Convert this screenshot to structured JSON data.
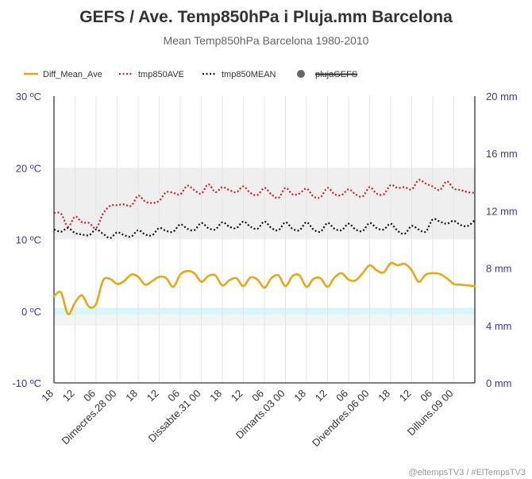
{
  "chart_data": {
    "type": "line",
    "title": "GEFS / Ave. Temp850hPa i Pluja.mm Barcelona",
    "subtitle": "Mean Temp850hPa Barcelona 1980-2010",
    "credit": "@eltempsTV3 / #ElTempsTV3",
    "legend": {
      "placement": "top-left",
      "entries": [
        {
          "name": "Diff_Mean_Ave",
          "color": "#e6a817",
          "style": "solid"
        },
        {
          "name": "tmp850AVE",
          "color": "#cc2222",
          "style": "dotted"
        },
        {
          "name": "tmp850MEAN",
          "color": "#111111",
          "style": "dotted"
        },
        {
          "name": "plujaGEFS",
          "color": "#666666",
          "style": "marker",
          "hidden": true
        }
      ]
    },
    "y_left": {
      "ylim": [
        -10,
        30
      ],
      "ticks": [
        {
          "value": 30,
          "label": "30 ºC"
        },
        {
          "value": 20,
          "label": "20 ºC"
        },
        {
          "value": 10,
          "label": "10 ºC"
        },
        {
          "value": 0,
          "label": "0 ºC"
        },
        {
          "value": -10,
          "label": "-10 ºC"
        }
      ]
    },
    "y_right": {
      "ylim": [
        0,
        20
      ],
      "ticks": [
        {
          "value": 20,
          "label": "20 mm"
        },
        {
          "value": 16,
          "label": "16 mm"
        },
        {
          "value": 12,
          "label": "12 mm"
        },
        {
          "value": 8,
          "label": "8 mm"
        },
        {
          "value": 4,
          "label": "4 mm"
        },
        {
          "value": 0,
          "label": "0 mm"
        }
      ]
    },
    "grid": true,
    "bands": [
      {
        "from": 10,
        "to": 20,
        "color": "#efefef"
      },
      {
        "from": -2,
        "to": 0,
        "color": "#f4f4f4"
      },
      {
        "from": -0.5,
        "to": 0.5,
        "color": "#d7f7f9"
      }
    ],
    "x_hours": [
      0,
      360
    ],
    "x_ticks": [
      {
        "hour": 0,
        "label": "18"
      },
      {
        "hour": 18,
        "label": "12"
      },
      {
        "hour": 36,
        "label": "06"
      },
      {
        "hour": 54,
        "label": "Dimecres.28 00"
      },
      {
        "hour": 72,
        "label": "18"
      },
      {
        "hour": 90,
        "label": "12"
      },
      {
        "hour": 108,
        "label": "06"
      },
      {
        "hour": 126,
        "label": "Dissabte.31 00"
      },
      {
        "hour": 144,
        "label": "18"
      },
      {
        "hour": 162,
        "label": "12"
      },
      {
        "hour": 180,
        "label": "06"
      },
      {
        "hour": 198,
        "label": "Dimarts.03 00"
      },
      {
        "hour": 216,
        "label": "18"
      },
      {
        "hour": 234,
        "label": "12"
      },
      {
        "hour": 252,
        "label": "06"
      },
      {
        "hour": 270,
        "label": "Divendres.06 00"
      },
      {
        "hour": 288,
        "label": "18"
      },
      {
        "hour": 306,
        "label": "12"
      },
      {
        "hour": 324,
        "label": "06"
      },
      {
        "hour": 342,
        "label": "Dilluns.09 00"
      }
    ],
    "series": [
      {
        "name": "tmp850AVE",
        "hours": [
          0,
          6,
          12,
          18,
          24,
          30,
          36,
          42,
          48,
          54,
          60,
          66,
          72,
          78,
          84,
          90,
          96,
          102,
          108,
          114,
          120,
          126,
          132,
          138,
          144,
          150,
          156,
          162,
          168,
          174,
          180,
          186,
          192,
          198,
          204,
          210,
          216,
          222,
          228,
          234,
          240,
          246,
          252,
          258,
          264,
          270,
          276,
          282,
          288,
          294,
          300,
          306,
          312,
          318,
          324,
          330,
          336,
          342,
          348,
          354,
          360
        ],
        "values": [
          13.7,
          13.6,
          11.8,
          13.2,
          12.4,
          12.3,
          11.6,
          13.6,
          14.7,
          14.8,
          14.9,
          14.7,
          16.1,
          15.3,
          15.1,
          15.4,
          16.6,
          16.5,
          16.3,
          17.5,
          16.9,
          16.4,
          17.7,
          16.6,
          17.3,
          16.9,
          16.6,
          17.4,
          16.5,
          16.2,
          17.2,
          16.3,
          15.8,
          17.2,
          16.3,
          16.4,
          17.1,
          16.0,
          15.9,
          17.2,
          16.3,
          16.2,
          17.0,
          16.3,
          16.0,
          17.3,
          16.4,
          16.3,
          17.6,
          17.2,
          17.3,
          17.0,
          18.3,
          17.8,
          17.4,
          16.9,
          18.1,
          17.1,
          16.9,
          16.6,
          16.5
        ]
      },
      {
        "name": "tmp850MEAN",
        "hours": [
          0,
          6,
          12,
          18,
          24,
          30,
          36,
          42,
          48,
          54,
          60,
          66,
          72,
          78,
          84,
          90,
          96,
          102,
          108,
          114,
          120,
          126,
          132,
          138,
          144,
          150,
          156,
          162,
          168,
          174,
          180,
          186,
          192,
          198,
          204,
          210,
          216,
          222,
          228,
          234,
          240,
          246,
          252,
          258,
          264,
          270,
          276,
          282,
          288,
          294,
          300,
          306,
          312,
          318,
          324,
          330,
          336,
          342,
          348,
          354,
          360
        ],
        "values": [
          11.4,
          11.1,
          11.6,
          10.9,
          10.7,
          10.6,
          11.4,
          10.8,
          10.2,
          11.0,
          10.6,
          10.4,
          11.3,
          10.7,
          10.6,
          11.6,
          11.2,
          11.1,
          12.1,
          11.5,
          11.3,
          12.3,
          11.6,
          11.4,
          12.4,
          11.8,
          11.6,
          12.5,
          11.8,
          11.5,
          12.5,
          11.6,
          11.3,
          12.4,
          11.5,
          11.3,
          12.4,
          11.4,
          11.1,
          12.3,
          11.5,
          11.3,
          12.2,
          11.4,
          11.2,
          12.3,
          11.6,
          11.4,
          12.2,
          11.2,
          10.8,
          11.9,
          11.4,
          11.1,
          12.8,
          12.5,
          12.2,
          12.6,
          12.0,
          11.9,
          12.7
        ]
      },
      {
        "name": "Diff_Mean_Ave",
        "hours": [
          0,
          6,
          12,
          18,
          24,
          30,
          36,
          42,
          48,
          54,
          60,
          66,
          72,
          78,
          84,
          90,
          96,
          102,
          108,
          114,
          120,
          126,
          132,
          138,
          144,
          150,
          156,
          162,
          168,
          174,
          180,
          186,
          192,
          198,
          204,
          210,
          216,
          222,
          228,
          234,
          240,
          246,
          252,
          258,
          264,
          270,
          276,
          282,
          288,
          294,
          300,
          306,
          312,
          318,
          324,
          330,
          336,
          342,
          348,
          354,
          360
        ],
        "values": [
          2.1,
          2.6,
          -0.4,
          1.2,
          2.2,
          0.6,
          1.0,
          4.3,
          4.5,
          3.8,
          4.2,
          5.1,
          4.8,
          3.7,
          4.2,
          4.8,
          4.6,
          3.4,
          5.1,
          5.6,
          5.3,
          4.1,
          4.9,
          5.0,
          3.6,
          4.3,
          4.6,
          3.5,
          4.7,
          4.4,
          3.3,
          4.6,
          5.0,
          3.5,
          4.9,
          5.0,
          3.4,
          4.5,
          4.6,
          3.4,
          4.7,
          5.3,
          4.4,
          4.3,
          5.3,
          6.4,
          5.7,
          5.4,
          6.7,
          6.4,
          6.6,
          5.7,
          4.1,
          5.1,
          5.3,
          5.2,
          4.6,
          3.8,
          3.7,
          3.6,
          3.5
        ]
      }
    ]
  }
}
